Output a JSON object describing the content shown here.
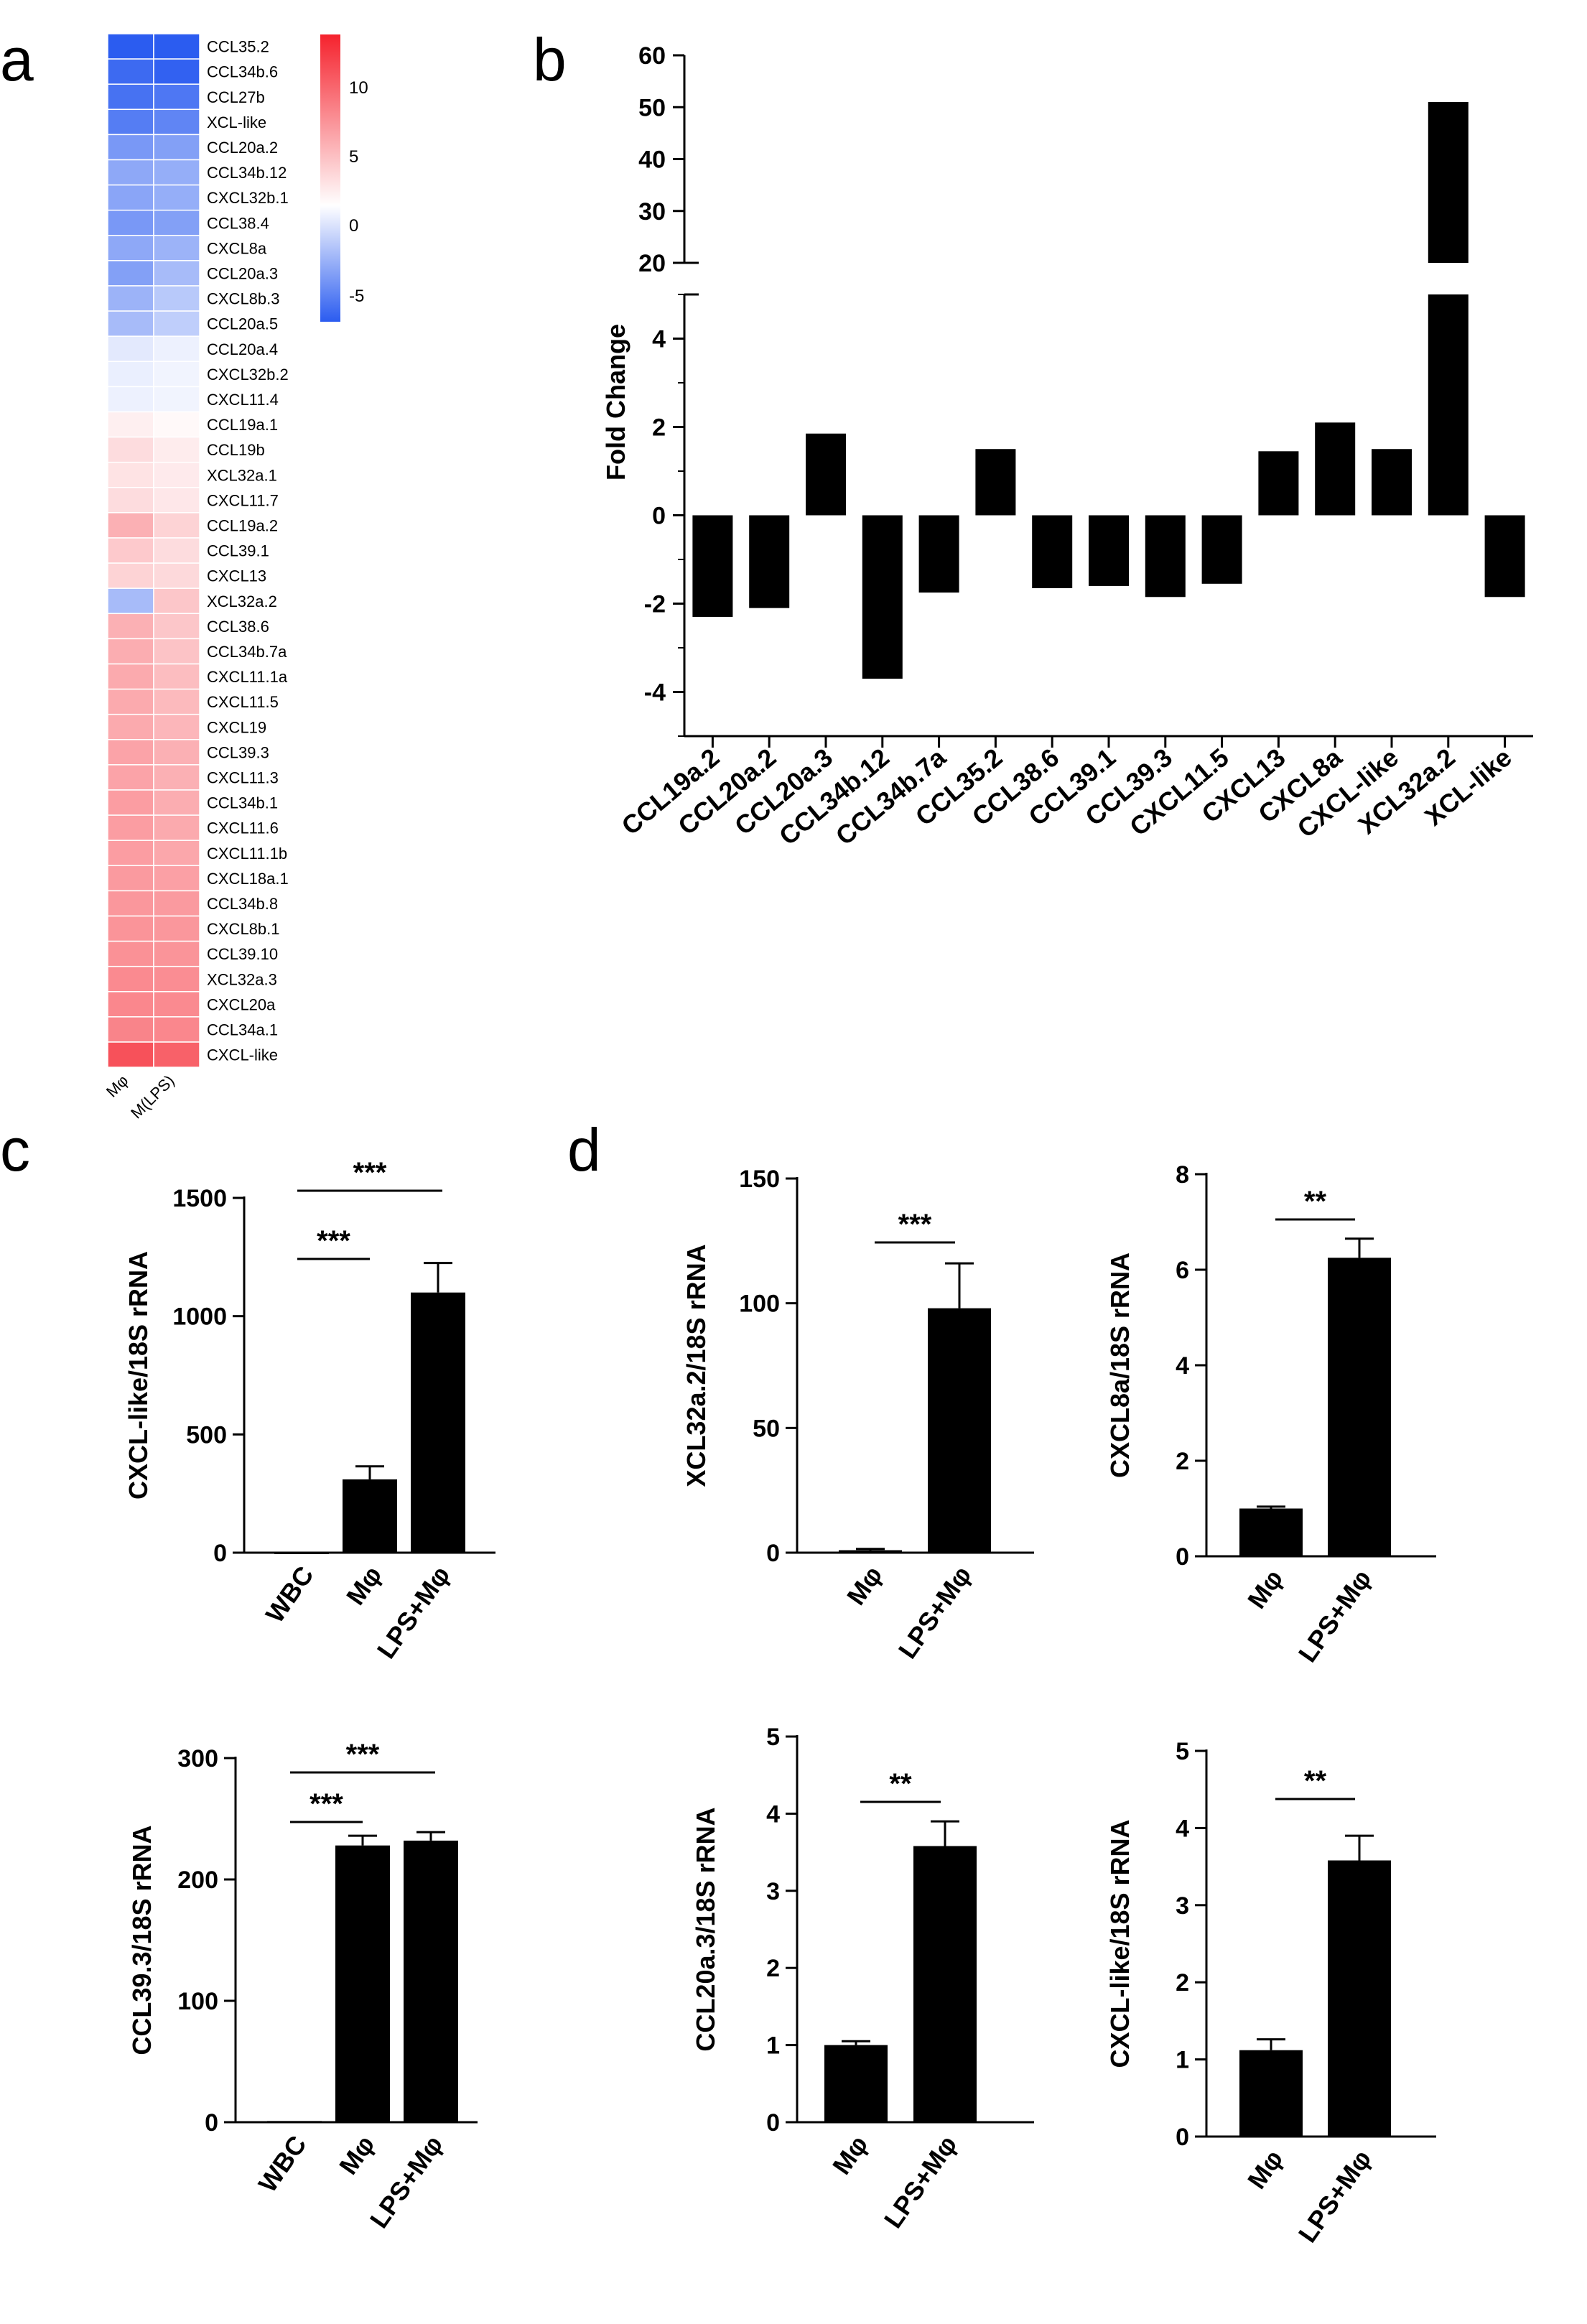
{
  "panel_letters": {
    "a": "a",
    "b": "b",
    "c": "c",
    "d": "d"
  },
  "chart_data": [
    {
      "id": "a",
      "type": "heatmap",
      "title": "",
      "columns": [
        "Mφ",
        "M(LPS)"
      ],
      "rows": [
        "CCL35.2",
        "CCL34b.6",
        "CCL27b",
        "XCL-like",
        "CCL20a.2",
        "CCL34b.12",
        "CXCL32b.1",
        "CCL38.4",
        "CXCL8a",
        "CCL20a.3",
        "CXCL8b.3",
        "CCL20a.5",
        "CCL20a.4",
        "CXCL32b.2",
        "CXCL11.4",
        "CCL19a.1",
        "CCL19b",
        "XCL32a.1",
        "CXCL11.7",
        "CCL19a.2",
        "CCL39.1",
        "CXCL13",
        "XCL32a.2",
        "CCL38.6",
        "CCL34b.7a",
        "CXCL11.1a",
        "CXCL11.5",
        "CXCL19",
        "CCL39.3",
        "CXCL11.3",
        "CCL34b.1",
        "CXCL11.6",
        "CXCL11.1b",
        "CXCL18a.1",
        "CCL34b.8",
        "CXCL8b.1",
        "CCL39.10",
        "XCL32a.3",
        "CXCL20a",
        "CCL34a.1",
        "CXCL-like"
      ],
      "values": [
        [
          -6,
          -6
        ],
        [
          -5.5,
          -5.8
        ],
        [
          -5.2,
          -5
        ],
        [
          -4.8,
          -4.5
        ],
        [
          -3.8,
          -3.5
        ],
        [
          -3.2,
          -3
        ],
        [
          -3.3,
          -3
        ],
        [
          -3.8,
          -3.5
        ],
        [
          -3.2,
          -2.8
        ],
        [
          -3.5,
          -2.5
        ],
        [
          -2.8,
          -2
        ],
        [
          -2.5,
          -1.8
        ],
        [
          -0.8,
          -0.5
        ],
        [
          -0.6,
          -0.4
        ],
        [
          -0.5,
          -0.4
        ],
        [
          1,
          0.4
        ],
        [
          2.2,
          1.2
        ],
        [
          1.8,
          1.3
        ],
        [
          2.2,
          1.5
        ],
        [
          5,
          2.8
        ],
        [
          3.4,
          2.2
        ],
        [
          2.8,
          2.4
        ],
        [
          -2.5,
          3.6
        ],
        [
          5,
          3.6
        ],
        [
          5.2,
          3.8
        ],
        [
          5.4,
          4.2
        ],
        [
          5.4,
          4.4
        ],
        [
          5.4,
          4.6
        ],
        [
          5.8,
          5
        ],
        [
          5.8,
          5
        ],
        [
          6.2,
          5.2
        ],
        [
          6.2,
          5.4
        ],
        [
          6.2,
          5.6
        ],
        [
          6.4,
          6
        ],
        [
          6.6,
          6.4
        ],
        [
          6.8,
          6.6
        ],
        [
          7,
          6.8
        ],
        [
          7.4,
          7.2
        ],
        [
          7.6,
          7.4
        ],
        [
          7.8,
          7.6
        ],
        [
          11,
          10
        ]
      ],
      "colorbar": {
        "min": -6,
        "max": 14,
        "ticks": [
          "10",
          "5",
          "0",
          "-5"
        ],
        "tick_values": [
          10,
          5,
          0,
          -5
        ],
        "low_color": "#2b5cf0",
        "mid_color": "#ffffff",
        "high_color": "#f5222d"
      }
    },
    {
      "id": "b",
      "type": "bar",
      "title": "",
      "ylabel": "Fold Change",
      "categories": [
        "CCL19a.2",
        "CCL20a.2",
        "CCL20a.3",
        "CCL34b.12",
        "CCL34b.7a",
        "CCL35.2",
        "CCL38.6",
        "CCL39.1",
        "CCL39.3",
        "CXCL11.5",
        "CXCL13",
        "CXCL8a",
        "CXCL-like",
        "XCL32a.2",
        "XCL-like"
      ],
      "values": [
        -2.3,
        -2.1,
        1.85,
        -3.7,
        -1.75,
        1.5,
        -1.65,
        -1.6,
        -1.85,
        -1.55,
        1.45,
        2.1,
        1.5,
        51,
        -1.85
      ],
      "ylim_lower": [
        -5,
        5
      ],
      "ylim_upper": [
        20,
        60
      ],
      "yticks_lower": [
        "-4",
        "-2",
        "0",
        "2",
        "4"
      ],
      "yticks_lower_values": [
        -4,
        -2,
        0,
        2,
        4
      ],
      "yticks_upper": [
        "20",
        "30",
        "40",
        "50",
        "60"
      ],
      "yticks_upper_values": [
        20,
        30,
        40,
        50,
        60
      ]
    },
    {
      "id": "c1",
      "type": "bar",
      "ylabel": "CXCL-like/18S rRNA",
      "categories": [
        "WBC",
        "Mφ",
        "LPS+Mφ"
      ],
      "values": [
        0,
        310,
        1100
      ],
      "errors": [
        0,
        55,
        125
      ],
      "ylim": [
        0,
        1500
      ],
      "yticks": [
        "0",
        "500",
        "1000",
        "1500"
      ],
      "ytick_values": [
        0,
        500,
        1000,
        1500
      ],
      "significance": [
        {
          "from": 0,
          "to": 2,
          "label": "***"
        },
        {
          "from": 0,
          "to": 1,
          "label": "***"
        }
      ]
    },
    {
      "id": "c2",
      "type": "bar",
      "ylabel": "CCL39.3/18S rRNA",
      "categories": [
        "WBC",
        "Mφ",
        "LPS+Mφ"
      ],
      "values": [
        1,
        228,
        232
      ],
      "errors": [
        0,
        8,
        7
      ],
      "ylim": [
        0,
        300
      ],
      "yticks": [
        "0",
        "100",
        "200",
        "300"
      ],
      "ytick_values": [
        0,
        100,
        200,
        300
      ],
      "significance": [
        {
          "from": 0,
          "to": 2,
          "label": "***"
        },
        {
          "from": 0,
          "to": 1,
          "label": "***"
        }
      ]
    },
    {
      "id": "d1",
      "type": "bar",
      "ylabel": "XCL32a.2/18S rRNA",
      "categories": [
        "Mφ",
        "LPS+Mφ"
      ],
      "values": [
        1,
        98
      ],
      "errors": [
        0.5,
        18
      ],
      "ylim": [
        0,
        150
      ],
      "yticks": [
        "0",
        "50",
        "100",
        "150"
      ],
      "ytick_values": [
        0,
        50,
        100,
        150
      ],
      "significance": [
        {
          "from": 0,
          "to": 1,
          "label": "***"
        }
      ]
    },
    {
      "id": "d2",
      "type": "bar",
      "ylabel": "CXCL8a/18S rRNA",
      "categories": [
        "Mφ",
        "LPS+Mφ"
      ],
      "values": [
        1,
        6.25
      ],
      "errors": [
        0.04,
        0.4
      ],
      "ylim": [
        0,
        8
      ],
      "yticks": [
        "0",
        "2",
        "4",
        "6",
        "8"
      ],
      "ytick_values": [
        0,
        2,
        4,
        6,
        8
      ],
      "significance": [
        {
          "from": 0,
          "to": 1,
          "label": "**"
        }
      ]
    },
    {
      "id": "d3",
      "type": "bar",
      "ylabel": "CCL20a.3/18S rRNA",
      "categories": [
        "Mφ",
        "LPS+Mφ"
      ],
      "values": [
        1,
        3.58
      ],
      "errors": [
        0.05,
        0.32
      ],
      "ylim": [
        0,
        5
      ],
      "yticks": [
        "0",
        "1",
        "2",
        "3",
        "4",
        "5"
      ],
      "ytick_values": [
        0,
        1,
        2,
        3,
        4,
        5
      ],
      "significance": [
        {
          "from": 0,
          "to": 1,
          "label": "**"
        }
      ]
    },
    {
      "id": "d4",
      "type": "bar",
      "ylabel": "CXCL-like/18S rRNA",
      "categories": [
        "Mφ",
        "LPS+Mφ"
      ],
      "values": [
        1.12,
        3.58
      ],
      "errors": [
        0.14,
        0.32
      ],
      "ylim": [
        0,
        5
      ],
      "yticks": [
        "0",
        "1",
        "2",
        "3",
        "4",
        "5"
      ],
      "ytick_values": [
        0,
        1,
        2,
        3,
        4,
        5
      ],
      "significance": [
        {
          "from": 0,
          "to": 1,
          "label": "**"
        }
      ]
    }
  ]
}
